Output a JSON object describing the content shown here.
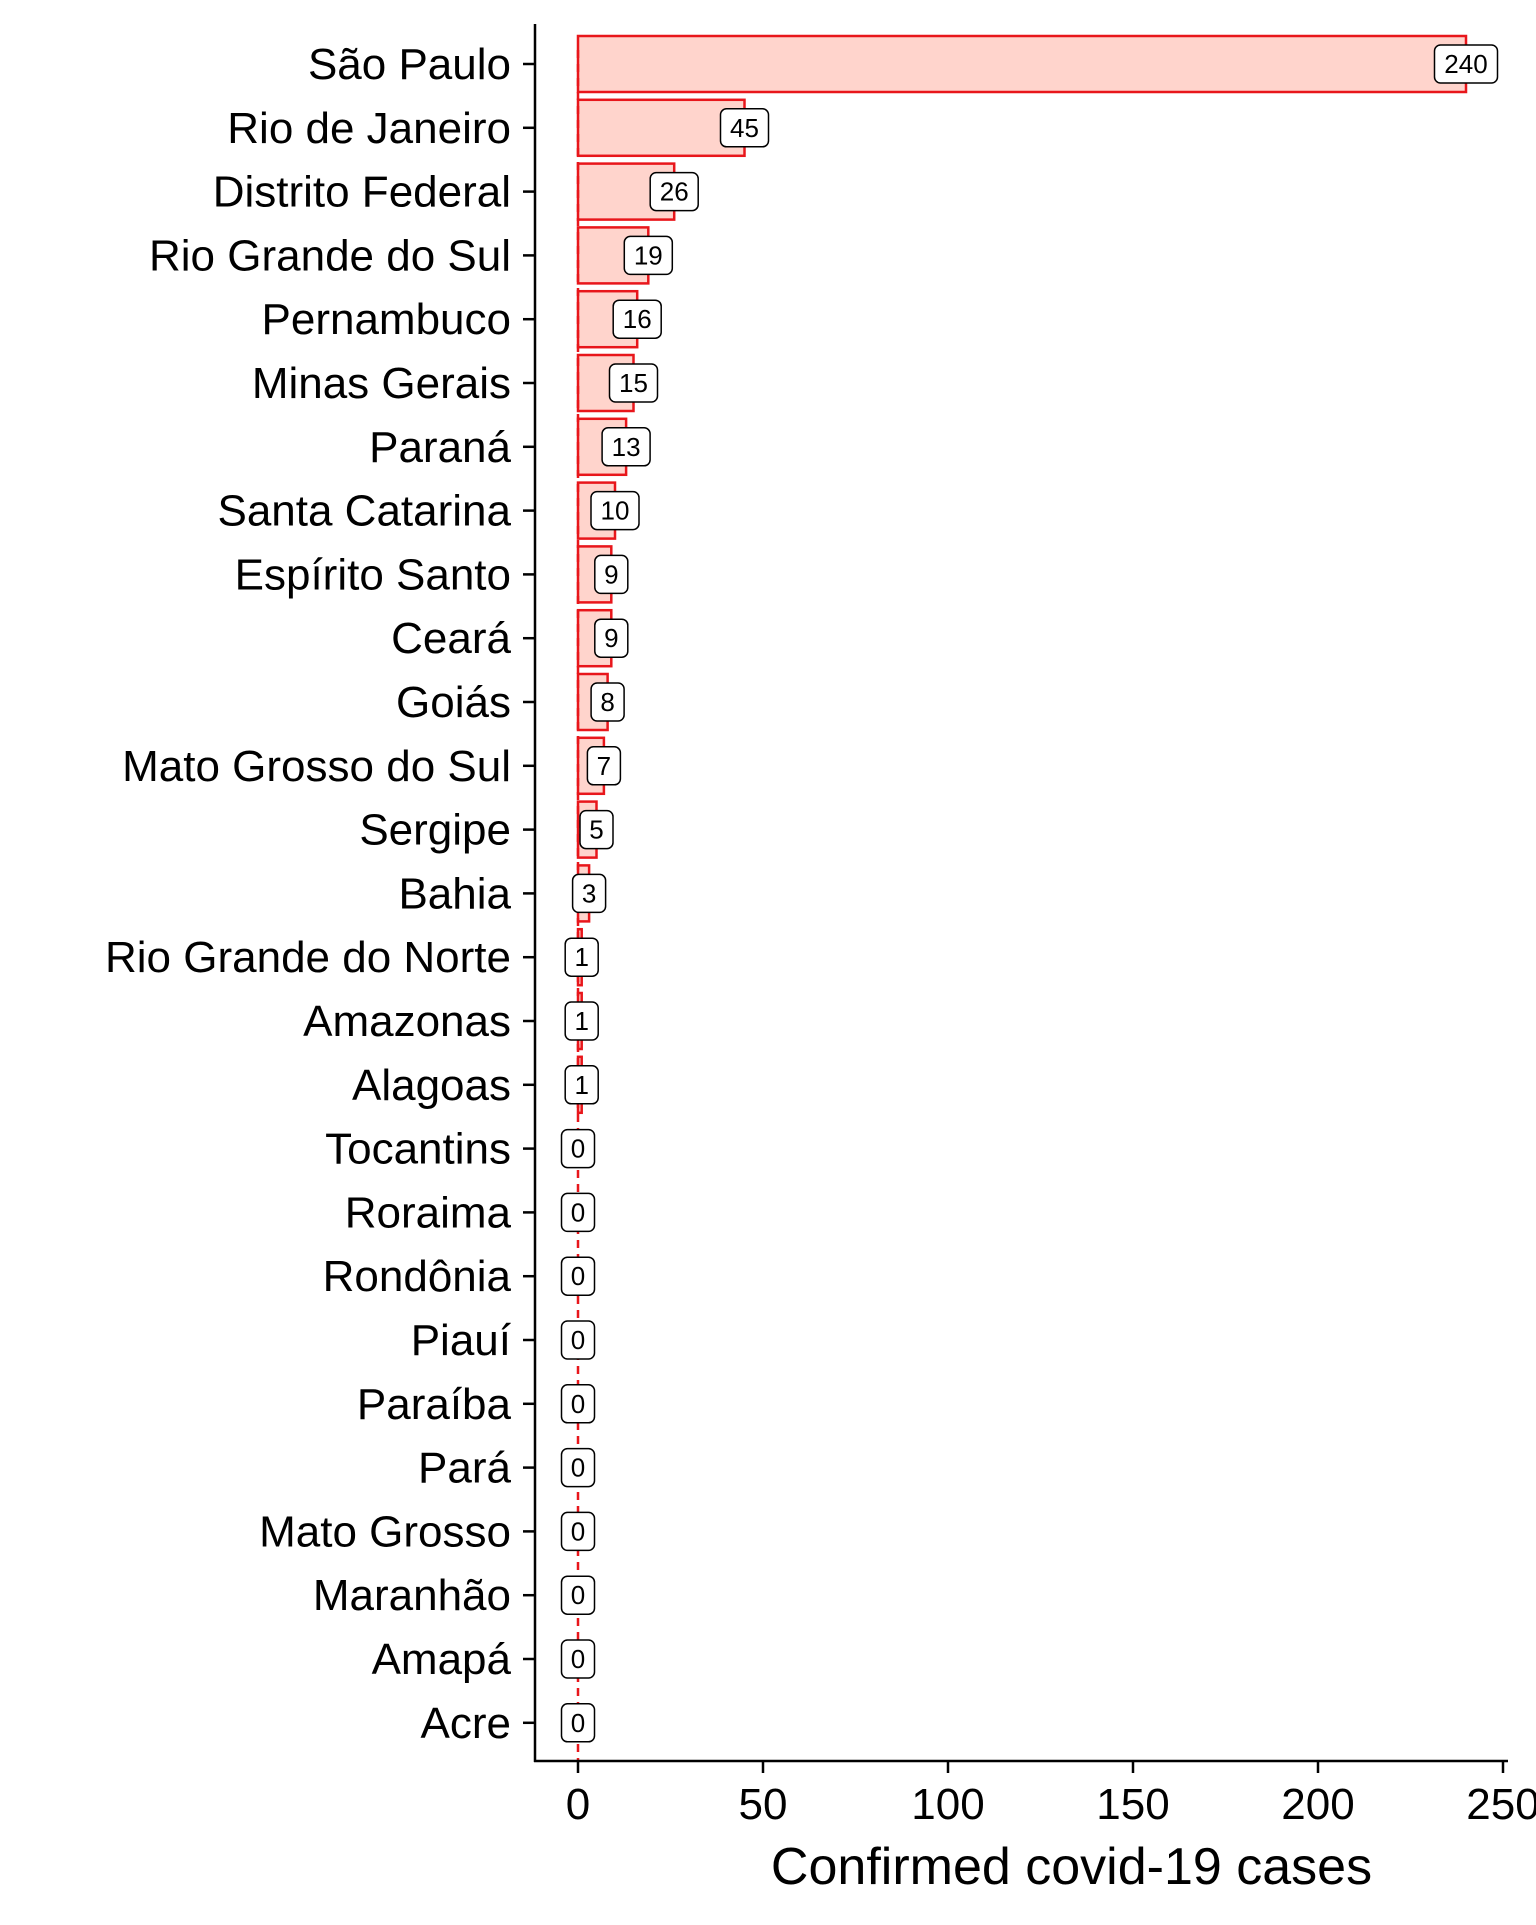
{
  "chart_data": {
    "type": "bar",
    "orientation": "horizontal",
    "title": "",
    "xlabel": "Confirmed covid-19 cases",
    "ylabel": "",
    "xlim": [
      0,
      250
    ],
    "xticks": [
      0,
      50,
      100,
      150,
      200,
      250
    ],
    "grid": false,
    "categories": [
      "São Paulo",
      "Rio de Janeiro",
      "Distrito Federal",
      "Rio Grande do Sul",
      "Pernambuco",
      "Minas Gerais",
      "Paraná",
      "Santa Catarina",
      "Espírito Santo",
      "Ceará",
      "Goiás",
      "Mato Grosso do Sul",
      "Sergipe",
      "Bahia",
      "Rio Grande do Norte",
      "Amazonas",
      "Alagoas",
      "Tocantins",
      "Roraima",
      "Rondônia",
      "Piauí",
      "Paraíba",
      "Pará",
      "Mato Grosso",
      "Maranhão",
      "Amapá",
      "Acre"
    ],
    "values": [
      240,
      45,
      26,
      19,
      16,
      15,
      13,
      10,
      9,
      9,
      8,
      7,
      5,
      3,
      1,
      1,
      1,
      0,
      0,
      0,
      0,
      0,
      0,
      0,
      0,
      0,
      0
    ],
    "bar_fill": "#ffd4cc",
    "bar_stroke": "#e8161b",
    "zero_line_color": "#e8161b"
  }
}
